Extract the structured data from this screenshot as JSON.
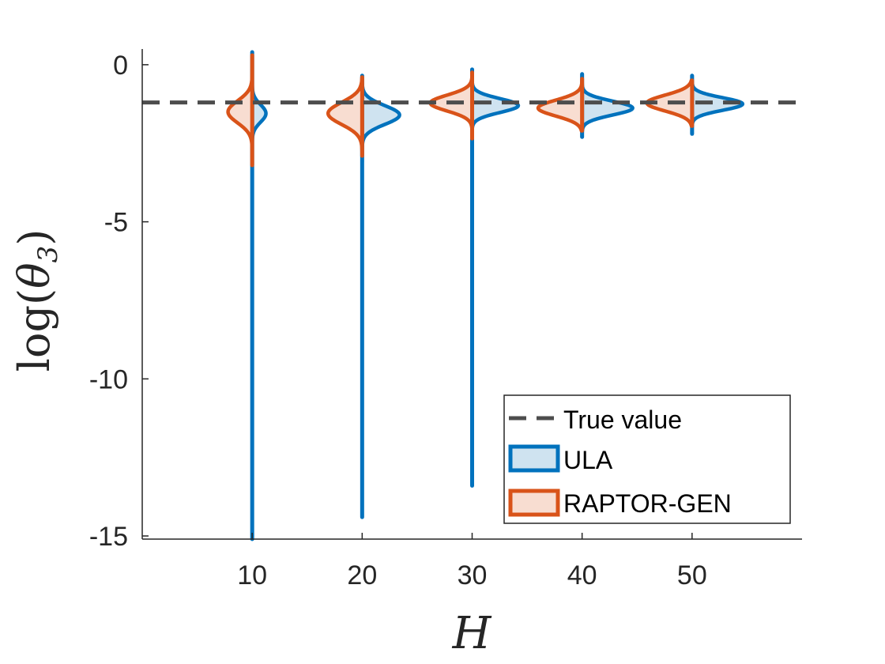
{
  "chart_data": {
    "type": "split-violin",
    "title": "",
    "xlabel": "H",
    "ylabel": "log(θ₃)",
    "ylabel_parts": {
      "func": "log(",
      "symbol": "θ",
      "sub": "3",
      "close": ")"
    },
    "xlim": [
      0,
      60
    ],
    "ylim": [
      -15.1,
      0.5
    ],
    "x_ticks": [
      10,
      20,
      30,
      40,
      50
    ],
    "x_tick_labels": [
      "10",
      "20",
      "30",
      "40",
      "50"
    ],
    "y_ticks": [
      0,
      -5,
      -10,
      -15
    ],
    "y_tick_labels": [
      "0",
      "-5",
      "-10",
      "-15"
    ],
    "grid": false,
    "true_value": -1.2,
    "legend_position": "bottom-right",
    "series": [
      {
        "name": "ULA",
        "side": "right",
        "color": "#0072BD",
        "fill": "#cfe3f0",
        "groups": [
          {
            "x": 10,
            "mode": -1.55,
            "spread": 0.28,
            "half_width": 1.25,
            "min": -15.1,
            "max": 0.4
          },
          {
            "x": 20,
            "mode": -1.6,
            "spread": 0.3,
            "half_width": 3.4,
            "min": -14.4,
            "max": -0.35
          },
          {
            "x": 30,
            "mode": -1.3,
            "spread": 0.22,
            "half_width": 4.2,
            "min": -13.4,
            "max": -0.15
          },
          {
            "x": 40,
            "mode": -1.38,
            "spread": 0.22,
            "half_width": 4.6,
            "min": -2.3,
            "max": -0.3
          },
          {
            "x": 50,
            "mode": -1.25,
            "spread": 0.2,
            "half_width": 4.6,
            "min": -2.2,
            "max": -0.35
          }
        ]
      },
      {
        "name": "RAPTOR-GEN",
        "side": "left",
        "color": "#D95319",
        "fill": "#f8ddd1",
        "groups": [
          {
            "x": 10,
            "mode": -1.5,
            "spread": 0.35,
            "half_width": 2.2,
            "min": -3.2,
            "max": 0.3
          },
          {
            "x": 20,
            "mode": -1.55,
            "spread": 0.35,
            "half_width": 3.1,
            "min": -2.9,
            "max": -0.4
          },
          {
            "x": 30,
            "mode": -1.22,
            "spread": 0.25,
            "half_width": 3.8,
            "min": -2.35,
            "max": -0.25
          },
          {
            "x": 40,
            "mode": -1.38,
            "spread": 0.25,
            "half_width": 4.0,
            "min": -2.1,
            "max": -0.45
          },
          {
            "x": 50,
            "mode": -1.22,
            "spread": 0.25,
            "half_width": 4.1,
            "min": -1.95,
            "max": -0.5
          }
        ]
      }
    ],
    "legend": [
      {
        "label": "True value",
        "kind": "dashed-line",
        "color": "#4d4d4d"
      },
      {
        "label": "ULA",
        "kind": "box",
        "color": "#0072BD",
        "fill": "#cfe3f0"
      },
      {
        "label": "RAPTOR-GEN",
        "kind": "box",
        "color": "#D95319",
        "fill": "#f8ddd1"
      }
    ]
  }
}
